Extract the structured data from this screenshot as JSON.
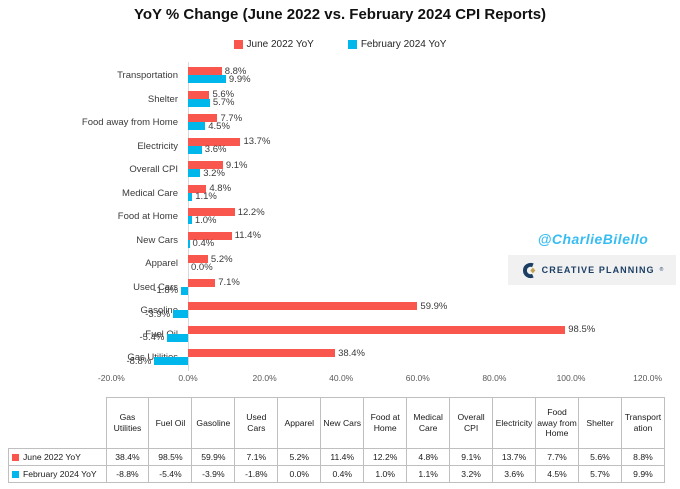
{
  "title": "YoY % Change (June 2022 vs. February 2024 CPI Reports)",
  "legend": [
    {
      "label": "June 2022 YoY",
      "color": "#F9564D"
    },
    {
      "label": "February 2024 YoY",
      "color": "#00B7EC"
    }
  ],
  "watermarks": {
    "handle": "@CharlieBilello",
    "logo_text": "CREATIVE PLANNING",
    "logo_mark": "®",
    "handle_color": "#38BDF2",
    "logo_navy": "#1C3E63",
    "logo_gold": "#C2A14D"
  },
  "chart_data": {
    "type": "bar",
    "orientation": "horizontal",
    "title": "YoY % Change (June 2022 vs. February 2024 CPI Reports)",
    "categories": [
      "Transportation",
      "Shelter",
      "Food away from Home",
      "Electricity",
      "Overall CPI",
      "Medical Care",
      "Food at Home",
      "New Cars",
      "Apparel",
      "Used Cars",
      "Gasoline",
      "Fuel Oil",
      "Gas Utilities"
    ],
    "series": [
      {
        "name": "June 2022 YoY",
        "color": "#F9564D",
        "values": [
          8.8,
          5.6,
          7.7,
          13.7,
          9.1,
          4.8,
          12.2,
          11.4,
          5.2,
          7.1,
          59.9,
          98.5,
          38.4
        ]
      },
      {
        "name": "February 2024 YoY",
        "color": "#00B7EC",
        "values": [
          9.9,
          5.7,
          4.5,
          3.6,
          3.2,
          1.1,
          1.0,
          0.4,
          0.0,
          -1.8,
          -3.9,
          -5.4,
          -8.8
        ]
      }
    ],
    "x_axis": {
      "min": -20,
      "max": 120,
      "ticks": [
        "-20.0%",
        "0.0%",
        "20.0%",
        "40.0%",
        "60.0%",
        "80.0%",
        "100.0%",
        "120.0%"
      ],
      "tick_values": [
        -20,
        0,
        20,
        40,
        60,
        80,
        100,
        120
      ]
    },
    "data_labels": true,
    "legend_position": "top",
    "grid": false
  },
  "table": {
    "columns": [
      "Gas Utilities",
      "Fuel Oil",
      "Gasoline",
      "Used Cars",
      "Apparel",
      "New Cars",
      "Food at Home",
      "Medical Care",
      "Overall CPI",
      "Electricity",
      "Food away from Home",
      "Shelter",
      "Transportation"
    ],
    "rows": [
      {
        "label": "June 2022 YoY",
        "color": "#F9564D",
        "values": [
          "38.4%",
          "98.5%",
          "59.9%",
          "7.1%",
          "5.2%",
          "11.4%",
          "12.2%",
          "4.8%",
          "9.1%",
          "13.7%",
          "7.7%",
          "5.6%",
          "8.8%"
        ]
      },
      {
        "label": "February 2024 YoY",
        "color": "#00B7EC",
        "values": [
          "-8.8%",
          "-5.4%",
          "-3.9%",
          "-1.8%",
          "0.0%",
          "0.4%",
          "1.0%",
          "1.1%",
          "3.2%",
          "3.6%",
          "4.5%",
          "5.7%",
          "9.9%"
        ]
      }
    ]
  }
}
